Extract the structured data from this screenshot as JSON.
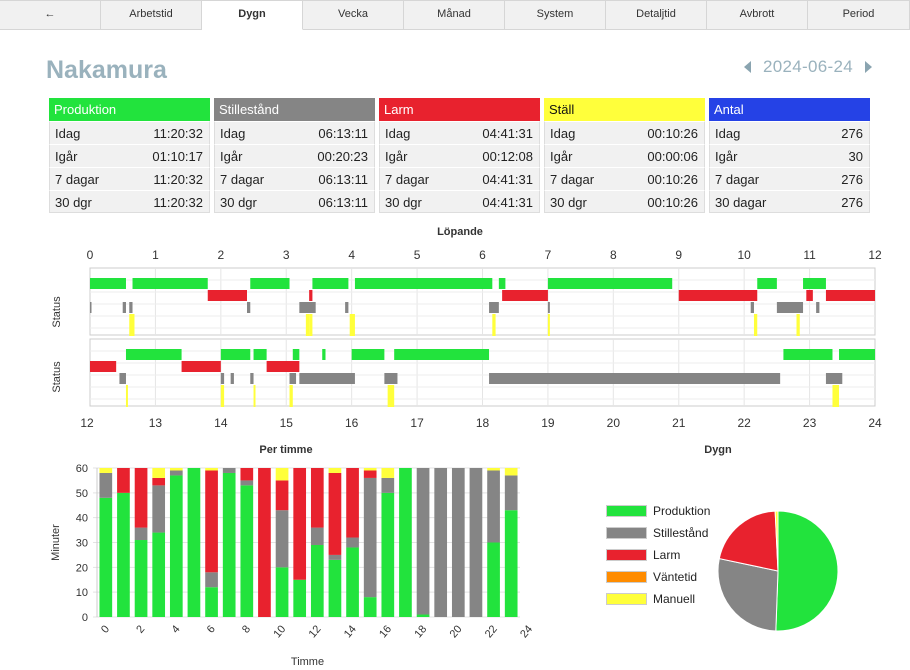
{
  "tabs": [
    "←",
    "Arbetstid",
    "Dygn",
    "Vecka",
    "Månad",
    "System",
    "Detaljtid",
    "Avbrott",
    "Period"
  ],
  "active_tab": 2,
  "title": "Nakamura",
  "date": "2024-06-24",
  "colors": {
    "produktion": "#22e33d",
    "stillestand": "#858585",
    "larm": "#e8222e",
    "vantetid": "#ff8c00",
    "manuell": "#ffff3b",
    "antal": "#2542e6"
  },
  "summary": [
    {
      "title": "Produktion",
      "color": "#22e33d",
      "title_color": "#ffffff",
      "rows": [
        [
          "Idag",
          "11:20:32"
        ],
        [
          "Igår",
          "01:10:17"
        ],
        [
          "7 dagar",
          "11:20:32"
        ],
        [
          "30 dgr",
          "11:20:32"
        ]
      ]
    },
    {
      "title": "Stillestånd",
      "color": "#858585",
      "title_color": "#ffffff",
      "rows": [
        [
          "Idag",
          "06:13:11"
        ],
        [
          "Igår",
          "00:20:23"
        ],
        [
          "7 dagar",
          "06:13:11"
        ],
        [
          "30 dgr",
          "06:13:11"
        ]
      ]
    },
    {
      "title": "Larm",
      "color": "#e8222e",
      "title_color": "#ffffff",
      "rows": [
        [
          "Idag",
          "04:41:31"
        ],
        [
          "Igår",
          "00:12:08"
        ],
        [
          "7 dagar",
          "04:41:31"
        ],
        [
          "30 dgr",
          "04:41:31"
        ]
      ]
    },
    {
      "title": "Ställ",
      "color": "#ffff3b",
      "title_color": "#111111",
      "rows": [
        [
          "Idag",
          "00:10:26"
        ],
        [
          "Igår",
          "00:00:06"
        ],
        [
          "7 dagar",
          "00:10:26"
        ],
        [
          "30 dgr",
          "00:10:26"
        ]
      ]
    },
    {
      "title": "Antal",
      "color": "#2542e6",
      "title_color": "#ffffff",
      "rows": [
        [
          "Idag",
          "276"
        ],
        [
          "Igår",
          "30"
        ],
        [
          "7 dagar",
          "276"
        ],
        [
          "30 dagar",
          "276"
        ]
      ]
    }
  ],
  "timeline": {
    "title": "Löpande",
    "ylabel": "Status",
    "top_ticks": [
      "0",
      "1",
      "2",
      "3",
      "4",
      "5",
      "6",
      "7",
      "8",
      "9",
      "10",
      "11",
      "12"
    ],
    "bottom_ticks": [
      "12",
      "13",
      "14",
      "15",
      "16",
      "17",
      "18",
      "19",
      "20",
      "21",
      "22",
      "23",
      "24"
    ],
    "produktion": [
      [
        0,
        0.55
      ],
      [
        0.65,
        1.8
      ],
      [
        2.45,
        3.05
      ],
      [
        3.4,
        3.95
      ],
      [
        4.05,
        6.15
      ],
      [
        6.25,
        6.35
      ],
      [
        7.0,
        8.9
      ],
      [
        10.2,
        10.5
      ],
      [
        10.9,
        11.25
      ],
      [
        12.55,
        13.4
      ],
      [
        14.0,
        14.45
      ],
      [
        14.5,
        14.7
      ],
      [
        15.1,
        15.2
      ],
      [
        15.55,
        15.6
      ],
      [
        16.0,
        16.5
      ],
      [
        16.65,
        18.1
      ],
      [
        22.6,
        23.35
      ],
      [
        23.45,
        24.0
      ]
    ],
    "stillestand": [
      [
        0,
        0.02
      ],
      [
        0.5,
        0.55
      ],
      [
        0.6,
        0.65
      ],
      [
        2.4,
        2.45
      ],
      [
        3.2,
        3.45
      ],
      [
        3.9,
        3.95
      ],
      [
        6.1,
        6.25
      ],
      [
        7.0,
        7.03
      ],
      [
        10.1,
        10.15
      ],
      [
        10.5,
        10.9
      ],
      [
        11.1,
        11.15
      ],
      [
        12.45,
        12.55
      ],
      [
        14.0,
        14.05
      ],
      [
        14.15,
        14.2
      ],
      [
        14.45,
        14.5
      ],
      [
        15.05,
        15.15
      ],
      [
        15.2,
        16.05
      ],
      [
        16.5,
        16.7
      ],
      [
        18.1,
        22.55
      ],
      [
        23.25,
        23.5
      ]
    ],
    "larm": [
      [
        1.8,
        2.4
      ],
      [
        3.35,
        3.4
      ],
      [
        6.3,
        7.0
      ],
      [
        9.0,
        10.2
      ],
      [
        10.95,
        11.05
      ],
      [
        11.25,
        12.0
      ],
      [
        12.0,
        12.4
      ],
      [
        13.4,
        14.0
      ],
      [
        14.7,
        15.2
      ]
    ],
    "manuell": [
      [
        0.6,
        0.68
      ],
      [
        3.3,
        3.35
      ],
      [
        3.35,
        3.4
      ],
      [
        3.97,
        4.05
      ],
      [
        6.15,
        6.2
      ],
      [
        7.0,
        7.03
      ],
      [
        10.15,
        10.2
      ],
      [
        10.8,
        10.85
      ],
      [
        12.55,
        12.58
      ],
      [
        14.0,
        14.05
      ],
      [
        14.5,
        14.53
      ],
      [
        15.05,
        15.1
      ],
      [
        16.55,
        16.65
      ],
      [
        23.35,
        23.45
      ]
    ],
    "larm_top_extra": [
      [
        3.05,
        3.2
      ]
    ]
  },
  "chart_data": [
    {
      "type": "bar",
      "title": "Per timme",
      "xlabel": "Timme",
      "ylabel": "Minuter",
      "ylim": [
        0,
        60
      ],
      "yticks": [
        "0",
        "10",
        "20",
        "30",
        "40",
        "50",
        "60"
      ],
      "xticks": [
        "0",
        "2",
        "4",
        "6",
        "8",
        "10",
        "12",
        "14",
        "16",
        "18",
        "20",
        "22",
        "24"
      ],
      "stacked": true,
      "categories": [
        "0",
        "1",
        "2",
        "3",
        "4",
        "5",
        "6",
        "7",
        "8",
        "9",
        "10",
        "11",
        "12",
        "13",
        "14",
        "15",
        "16",
        "17",
        "18",
        "19",
        "20",
        "21",
        "22",
        "23"
      ],
      "series": [
        {
          "name": "Produktion",
          "color": "#22e33d",
          "values": [
            48,
            50,
            31,
            34,
            57,
            60,
            12,
            58,
            53,
            0,
            20,
            15,
            29,
            23,
            28,
            8,
            50,
            60,
            1,
            0,
            0,
            0,
            30,
            43
          ]
        },
        {
          "name": "Stillestånd",
          "color": "#858585",
          "values": [
            10,
            0,
            5,
            19,
            2,
            0,
            6,
            2,
            2,
            0,
            23,
            0,
            7,
            2,
            4,
            48,
            6,
            0,
            59,
            60,
            60,
            60,
            29,
            14
          ]
        },
        {
          "name": "Larm",
          "color": "#e8222e",
          "values": [
            0,
            10,
            24,
            3,
            0,
            0,
            41,
            0,
            5,
            60,
            12,
            45,
            24,
            33,
            28,
            3,
            0,
            0,
            0,
            0,
            0,
            0,
            0,
            0
          ]
        },
        {
          "name": "Väntetid",
          "color": "#ff8c00",
          "values": [
            0,
            0,
            0,
            0,
            0,
            0,
            0,
            0,
            0,
            0,
            0,
            0,
            0,
            0,
            0,
            0,
            0,
            0,
            0,
            0,
            0,
            0,
            0,
            0
          ]
        },
        {
          "name": "Manuell",
          "color": "#ffff3b",
          "values": [
            2,
            0,
            0,
            4,
            1,
            0,
            1,
            0,
            0,
            0,
            5,
            0,
            0,
            2,
            0,
            1,
            4,
            0,
            0,
            0,
            0,
            0,
            1,
            3
          ]
        }
      ]
    },
    {
      "type": "pie",
      "title": "Dygn",
      "legend": "left",
      "labels": [
        "Produktion",
        "Stillestånd",
        "Larm",
        "Väntetid",
        "Manuell"
      ],
      "colors": [
        "#22e33d",
        "#858585",
        "#e8222e",
        "#ff8c00",
        "#ffff3b"
      ],
      "values": [
        11.34,
        6.22,
        4.69,
        0,
        0.17
      ]
    }
  ]
}
